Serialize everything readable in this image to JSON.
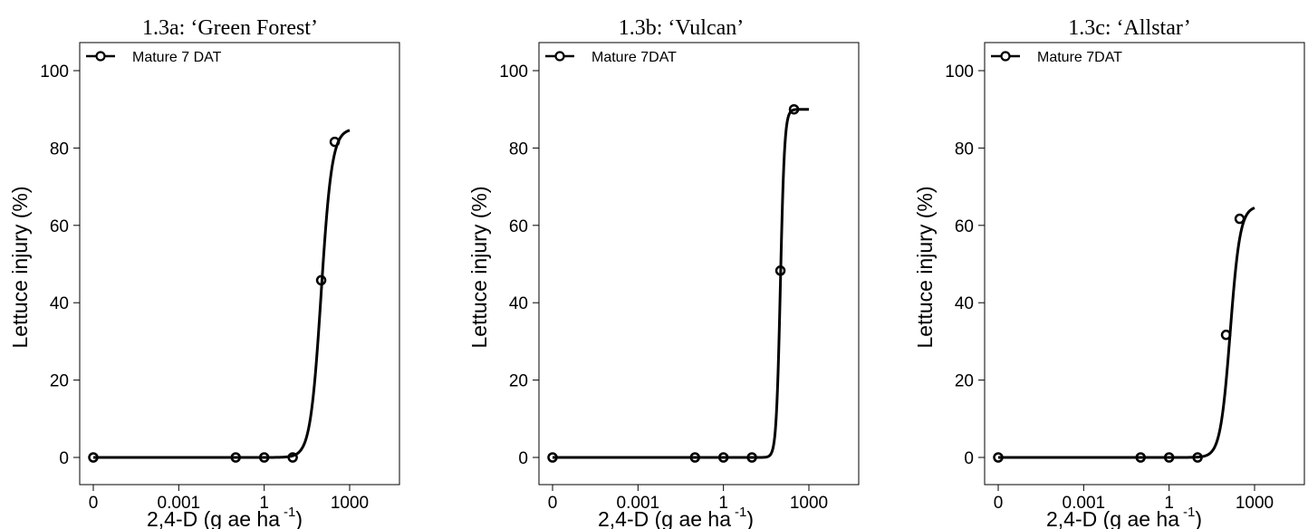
{
  "chart_data": [
    {
      "type": "line",
      "title": "1.3a:  ‘Green Forest’",
      "xlabel": "2,4-D (g ae ha",
      "xlabel_sup": "-1",
      "xlabel_close": ")",
      "ylabel": "Lettuce injury (%)",
      "xscale": "log",
      "xticks": [
        "0",
        "0.001",
        "1",
        "1000"
      ],
      "yticks": [
        "0",
        "20",
        "40",
        "60",
        "80",
        "100"
      ],
      "ylim": [
        0,
        100
      ],
      "legend": "top-left",
      "series": [
        {
          "name": "Mature 7 DAT",
          "points": [
            {
              "x": "0",
              "y": 0
            },
            {
              "x": 0.1,
              "y": 0
            },
            {
              "x": 1,
              "y": 0
            },
            {
              "x": 10,
              "y": 0
            },
            {
              "x": 100,
              "y": 45.8
            },
            {
              "x": 300,
              "y": 81.6
            }
          ],
          "fit": {
            "model": "log-logistic",
            "upper": 85,
            "ed50": 100,
            "slope": 2.3
          }
        }
      ]
    },
    {
      "type": "line",
      "title": "1.3b: ‘Vulcan’",
      "xlabel": "2,4-D (g ae ha",
      "xlabel_sup": "-1",
      "xlabel_close": ")",
      "ylabel": "Lettuce injury (%)",
      "xscale": "log",
      "xticks": [
        "0",
        "0.001",
        "1",
        "1000"
      ],
      "yticks": [
        "0",
        "20",
        "40",
        "60",
        "80",
        "100"
      ],
      "ylim": [
        0,
        100
      ],
      "legend": "top-left",
      "series": [
        {
          "name": "Mature 7DAT",
          "points": [
            {
              "x": "0",
              "y": 0
            },
            {
              "x": 0.1,
              "y": 0
            },
            {
              "x": 1,
              "y": 0
            },
            {
              "x": 10,
              "y": 0
            },
            {
              "x": 100,
              "y": 48.3
            },
            {
              "x": 300,
              "y": 90
            }
          ],
          "fit": {
            "model": "log-logistic",
            "upper": 90,
            "ed50": 100,
            "slope": 6
          }
        }
      ]
    },
    {
      "type": "line",
      "title": "1.3c: ‘Allstar’",
      "xlabel": "2,4-D (g ae ha",
      "xlabel_sup": "-1",
      "xlabel_close": ")",
      "ylabel": "Lettuce injury (%)",
      "xscale": "log",
      "xticks": [
        "0",
        "0.001",
        "1",
        "1000"
      ],
      "yticks": [
        "0",
        "20",
        "40",
        "60",
        "80",
        "100"
      ],
      "ylim": [
        0,
        100
      ],
      "legend": "top-left",
      "series": [
        {
          "name": "Mature 7DAT",
          "points": [
            {
              "x": "0",
              "y": 0
            },
            {
              "x": 0.1,
              "y": 0
            },
            {
              "x": 1,
              "y": 0
            },
            {
              "x": 10,
              "y": 0
            },
            {
              "x": 100,
              "y": 31.7
            },
            {
              "x": 300,
              "y": 61.7
            }
          ],
          "fit": {
            "model": "log-logistic",
            "upper": 65,
            "ed50": 140,
            "slope": 2.5
          }
        }
      ]
    }
  ]
}
